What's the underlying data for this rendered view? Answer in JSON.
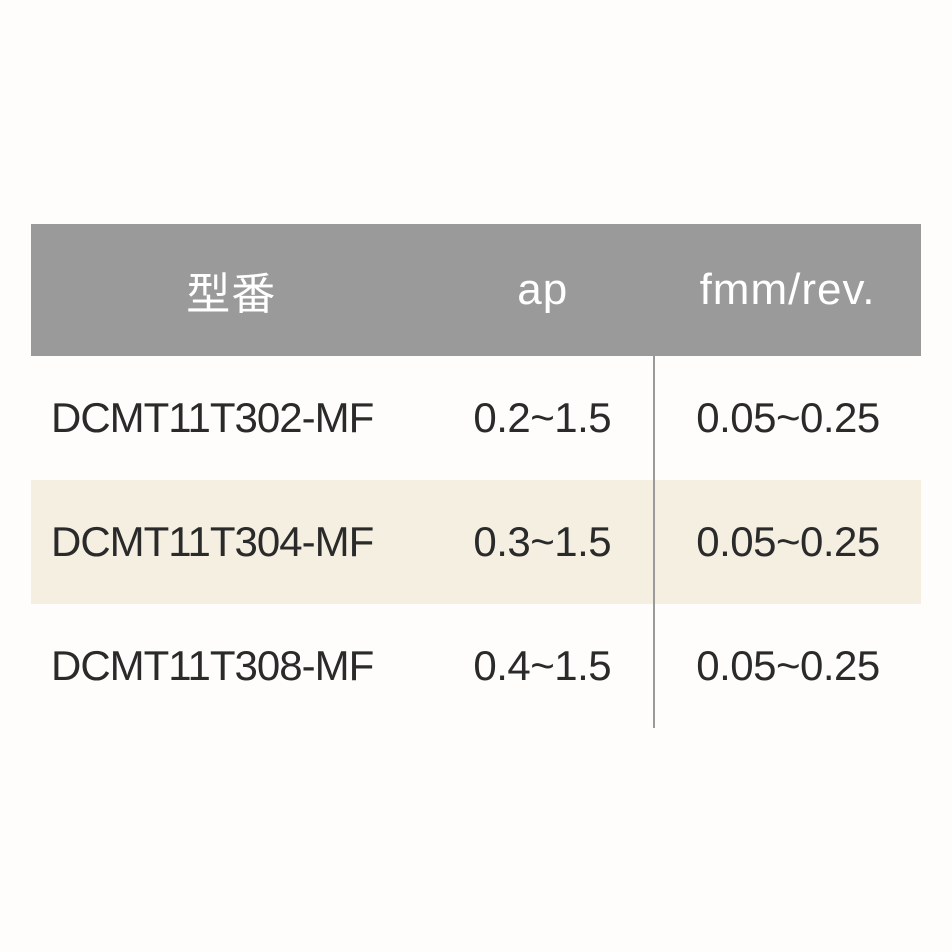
{
  "table": {
    "type": "table",
    "header_bg_color": "#9a9a9a",
    "header_text_color": "#ffffff",
    "row_odd_bg_color": "#fefdfb",
    "row_even_bg_color": "#f5efe2",
    "text_color": "#2a2a2a",
    "divider_color": "#9a9a9a",
    "header_fontsize": 44,
    "cell_fontsize": 42,
    "columns": [
      {
        "key": "model",
        "label": "型番",
        "width": "45%",
        "align": "left"
      },
      {
        "key": "ap",
        "label": "ap",
        "width": "25%",
        "align": "center"
      },
      {
        "key": "fmm",
        "label": "fmm/rev.",
        "width": "30%",
        "align": "center"
      }
    ],
    "rows": [
      {
        "model": "DCMT11T302-MF",
        "ap": "0.2~1.5",
        "fmm": "0.05~0.25"
      },
      {
        "model": "DCMT11T304-MF",
        "ap": "0.3~1.5",
        "fmm": "0.05~0.25"
      },
      {
        "model": "DCMT11T308-MF",
        "ap": "0.4~1.5",
        "fmm": "0.05~0.25"
      }
    ]
  }
}
